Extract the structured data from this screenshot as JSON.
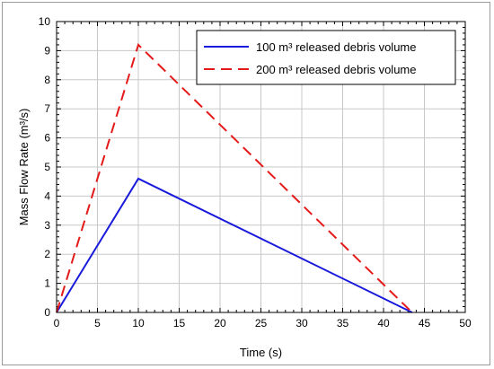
{
  "chart_data": {
    "type": "line",
    "title": "",
    "xlabel": "Time (s)",
    "ylabel": "Mass Flow Rate (m³/s)",
    "xlim": [
      0,
      50
    ],
    "ylim": [
      0,
      10
    ],
    "xticks": [
      0,
      5,
      10,
      15,
      20,
      25,
      30,
      35,
      40,
      45,
      50
    ],
    "yticks": [
      0,
      1,
      2,
      3,
      4,
      5,
      6,
      7,
      8,
      9,
      10
    ],
    "grid": true,
    "legend_position": "top-right",
    "series": [
      {
        "name": "100 m³ released debris volume",
        "color": "#1a1adc",
        "dash": "solid",
        "points": [
          [
            0,
            0
          ],
          [
            10,
            4.6
          ],
          [
            43.5,
            0
          ]
        ]
      },
      {
        "name": "200 m³ released debris volume",
        "color": "#e41a1a",
        "dash": "dashed",
        "points": [
          [
            0,
            0
          ],
          [
            10,
            9.2
          ],
          [
            43.5,
            0
          ]
        ]
      }
    ]
  }
}
